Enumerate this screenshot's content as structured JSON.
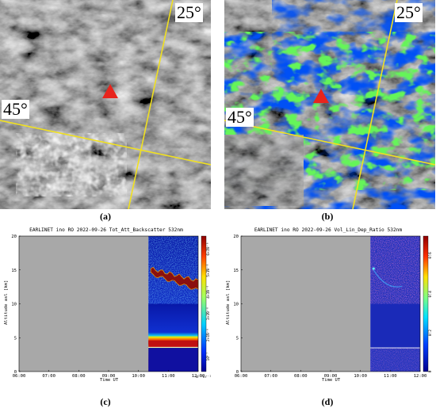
{
  "panels": {
    "a": {
      "caption": "(a)",
      "lat_label": "45°",
      "lon_label": "25°"
    },
    "b": {
      "caption": "(b)",
      "lat_label": "45°",
      "lon_label": "25°"
    },
    "c": {
      "caption": "(c)",
      "title": "EARLINET ino RO 2022-09-26 Tot_Att_Backscatter 532nm",
      "xlabel": "Time UT",
      "ylabel": "Altitude asl [km]",
      "colorbar_label": "m⁻¹sr⁻¹",
      "colorbar_ticks": [
        "10⁻⁷",
        "2×10⁻⁶",
        "3×10⁻⁶",
        "4×10⁻⁶",
        "5×10⁻⁶",
        "6×10⁻⁶"
      ]
    },
    "d": {
      "caption": "(d)",
      "title": "EARLINET ino RO 2022-09-26 Vol_Lin_Dep_Ratio 532nm",
      "xlabel": "Time UT",
      "ylabel": "Altitude asl [km]",
      "colorbar_ticks": [
        "0",
        "0.2",
        "0.4",
        "0.6"
      ]
    }
  },
  "chart_data": [
    {
      "type": "heatmap",
      "title": "EARLINET ino RO 2022-09-26 Tot_Att_Backscatter 532nm",
      "xlabel": "Time UT",
      "ylabel": "Altitude asl [km]",
      "x_ticks": [
        "06:00",
        "07:00",
        "08:00",
        "09:00",
        "10:00",
        "11:00",
        "12:00"
      ],
      "y_ticks": [
        0,
        5,
        10,
        15,
        20
      ],
      "xlim": [
        "06:00",
        "12:00"
      ],
      "ylim": [
        0,
        20
      ],
      "data_start": "10:20",
      "colorbar": {
        "label": "m⁻¹sr⁻¹",
        "ticks": [
          "10⁻⁷",
          "2×10⁻⁶",
          "3×10⁻⁶",
          "4×10⁻⁶",
          "5×10⁻⁶",
          "6×10⁻⁶"
        ]
      }
    },
    {
      "type": "heatmap",
      "title": "EARLINET ino RO 2022-09-26 Vol_Lin_Dep_Ratio 532nm",
      "xlabel": "Time UT",
      "ylabel": "Altitude asl [km]",
      "x_ticks": [
        "06:00",
        "07:00",
        "08:00",
        "09:00",
        "10:00",
        "11:00",
        "12:00"
      ],
      "y_ticks": [
        0,
        5,
        10,
        15,
        20
      ],
      "xlim": [
        "06:00",
        "12:00"
      ],
      "ylim": [
        0,
        20
      ],
      "data_start": "10:20",
      "colorbar": {
        "ticks": [
          "0",
          "0.2",
          "0.4",
          "0.6"
        ],
        "range": [
          0,
          0.7
        ]
      }
    }
  ],
  "colors": {
    "mask_blue": "#0015e8",
    "mask_green": "#22e81a",
    "marker_red": "#e8241c",
    "grid_yellow": "#f0e020",
    "no_data_gray": "#a8a8a8"
  }
}
